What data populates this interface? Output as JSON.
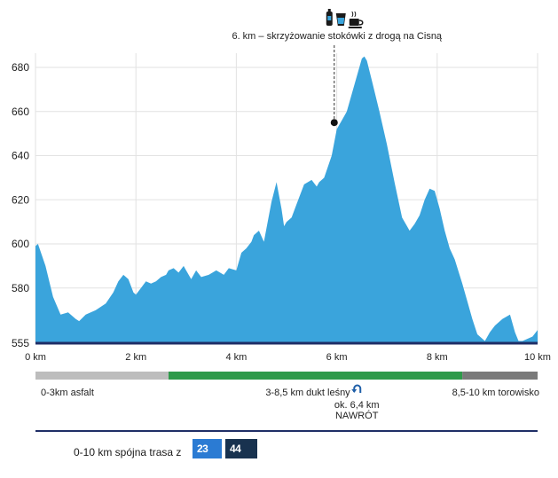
{
  "chart_data": {
    "type": "area",
    "title": "",
    "xlabel": "",
    "ylabel": "",
    "xlim": [
      0,
      10
    ],
    "ylim": [
      555,
      685
    ],
    "x_tick_labels": [
      "0 km",
      "2 km",
      "4 km",
      "6 km",
      "8 km",
      "10 km"
    ],
    "x_tick_values": [
      0,
      2,
      4,
      6,
      8,
      10
    ],
    "y_tick_labels": [
      "680",
      "660",
      "640",
      "620",
      "600",
      "580",
      "555"
    ],
    "y_tick_values": [
      680,
      660,
      640,
      620,
      600,
      580,
      555
    ],
    "grid": true,
    "series": [
      {
        "fill_color": "#3aa4dc",
        "x": [
          0,
          0.05,
          0.2,
          0.35,
          0.5,
          0.65,
          0.8,
          0.87,
          1.0,
          1.2,
          1.4,
          1.55,
          1.65,
          1.75,
          1.85,
          1.95,
          2.0,
          2.1,
          2.2,
          2.3,
          2.4,
          2.5,
          2.6,
          2.65,
          2.75,
          2.85,
          2.95,
          3.0,
          3.1,
          3.2,
          3.3,
          3.45,
          3.6,
          3.75,
          3.85,
          4.0,
          4.1,
          4.2,
          4.3,
          4.35,
          4.45,
          4.55,
          4.7,
          4.8,
          4.9,
          4.95,
          5.0,
          5.1,
          5.2,
          5.35,
          5.5,
          5.6,
          5.65,
          5.75,
          5.9,
          6.0,
          6.1,
          6.2,
          6.35,
          6.5,
          6.55,
          6.6,
          6.7,
          6.85,
          7.0,
          7.15,
          7.3,
          7.45,
          7.55,
          7.65,
          7.75,
          7.85,
          7.95,
          8.05,
          8.15,
          8.25,
          8.35,
          8.5,
          8.6,
          8.7,
          8.8,
          8.95,
          9.05,
          9.15,
          9.3,
          9.45,
          9.55,
          9.62,
          9.7,
          9.8,
          9.9,
          10.0
        ],
        "y": [
          599,
          600,
          590,
          576,
          568,
          569,
          566,
          565,
          568,
          570,
          573,
          578,
          583,
          586,
          584,
          578,
          577,
          580,
          583,
          582,
          583,
          585,
          586,
          588,
          589,
          587,
          590,
          588,
          584,
          588,
          585,
          586,
          588,
          586,
          589,
          588,
          596,
          598,
          601,
          604,
          606,
          601,
          619,
          628,
          616,
          608,
          610,
          612,
          618,
          627,
          629,
          626,
          628,
          630,
          640,
          652,
          656,
          660,
          672,
          684,
          685,
          683,
          674,
          660,
          645,
          628,
          612,
          606,
          609,
          613,
          620,
          625,
          624,
          616,
          606,
          598,
          593,
          582,
          574,
          566,
          559,
          556,
          560,
          563,
          566,
          568,
          560,
          556,
          556,
          557,
          558,
          561
        ]
      }
    ],
    "annotation": {
      "text": "6. km – skrzyżowanie stokówki z drogą na Cisną",
      "x": 5.95,
      "y": 655,
      "icons": [
        "water-bottle-icon",
        "drink-glass-icon",
        "coffee-cup-icon"
      ]
    },
    "segments": [
      {
        "from": 0,
        "to": 2.65,
        "color": "#bdbdbd",
        "label": "0-3km asfalt"
      },
      {
        "from": 2.65,
        "to": 8.5,
        "color": "#2e9a4a",
        "label": "3-8,5 km dukt leśny"
      },
      {
        "from": 8.5,
        "to": 10,
        "color": "#7a7a7a",
        "label": "8,5-10 km torowisko"
      }
    ],
    "turnaround": {
      "x": 6.4,
      "label_line1": "ok. 6,4 km",
      "label_line2": "NAWRÓT",
      "icon": "u-turn-icon"
    }
  },
  "footer": {
    "text": "0-10 km spójna trasa z",
    "badges": [
      {
        "label": "23 km",
        "color": "#2b7bd3"
      },
      {
        "label": "44 km",
        "color": "#18324f"
      }
    ],
    "line_color": "#1f2e66"
  }
}
